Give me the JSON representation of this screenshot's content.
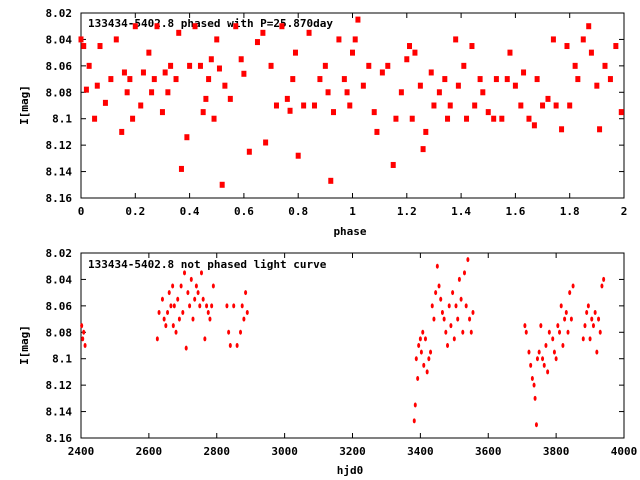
{
  "chart_data": [
    {
      "type": "scatter",
      "title": "133434-5402.8 phased with P=25.870day",
      "xlabel": "phase",
      "ylabel": "I[mag]",
      "xlim": [
        0,
        2
      ],
      "ylim": [
        8.16,
        8.02
      ],
      "y_inverted": true,
      "xticks": [
        "0",
        "0.2",
        "0.4",
        "0.6",
        "0.8",
        "1",
        "1.2",
        "1.4",
        "1.6",
        "1.8",
        "2"
      ],
      "yticks": [
        "8.02",
        "8.04",
        "8.06",
        "8.08",
        "8.1",
        "8.12",
        "8.14",
        "8.16"
      ],
      "marker_color": "#ff0000",
      "series": [
        {
          "x": [
            0.0,
            0.01,
            0.02,
            0.03,
            0.05,
            0.06,
            0.07,
            0.09,
            0.11,
            0.13,
            0.15,
            0.16,
            0.17,
            0.18,
            0.19,
            0.2,
            0.22,
            0.23,
            0.25,
            0.26,
            0.27,
            0.28,
            0.3,
            0.31,
            0.32,
            0.33,
            0.35,
            0.36,
            0.37,
            0.39,
            0.4,
            0.42,
            0.44,
            0.45,
            0.46,
            0.47,
            0.48,
            0.49,
            0.5,
            0.51,
            0.52,
            0.53,
            0.55,
            0.57,
            0.59,
            0.6,
            0.62,
            0.65,
            0.67,
            0.68,
            0.7,
            0.72,
            0.74,
            0.76,
            0.77,
            0.78,
            0.79,
            0.8,
            0.82,
            0.84,
            0.86,
            0.88,
            0.9,
            0.91,
            0.92,
            0.93,
            0.95,
            0.97,
            0.98,
            0.99,
            1.0,
            1.01,
            1.02,
            1.04,
            1.06,
            1.08,
            1.09,
            1.11,
            1.13,
            1.15,
            1.16,
            1.18,
            1.2,
            1.21,
            1.22,
            1.23,
            1.25,
            1.26,
            1.27,
            1.29,
            1.3,
            1.32,
            1.34,
            1.35,
            1.36,
            1.38,
            1.39,
            1.41,
            1.42,
            1.44,
            1.45,
            1.47,
            1.48,
            1.5,
            1.52,
            1.53,
            1.55,
            1.57,
            1.58,
            1.6,
            1.62,
            1.63,
            1.65,
            1.67,
            1.68,
            1.7,
            1.72,
            1.74,
            1.75,
            1.77,
            1.79,
            1.8,
            1.82,
            1.83,
            1.85,
            1.87,
            1.88,
            1.9,
            1.91,
            1.93,
            1.95,
            1.97,
            1.99
          ],
          "y": [
            8.04,
            8.045,
            8.078,
            8.06,
            8.1,
            8.075,
            8.045,
            8.088,
            8.07,
            8.04,
            8.11,
            8.065,
            8.08,
            8.07,
            8.1,
            8.03,
            8.09,
            8.065,
            8.05,
            8.08,
            8.07,
            8.03,
            8.095,
            8.065,
            8.08,
            8.06,
            8.07,
            8.035,
            8.138,
            8.114,
            8.06,
            8.03,
            8.06,
            8.095,
            8.085,
            8.07,
            8.055,
            8.1,
            8.04,
            8.062,
            8.15,
            8.075,
            8.085,
            8.03,
            8.055,
            8.066,
            8.125,
            8.042,
            8.035,
            8.118,
            8.06,
            8.09,
            8.03,
            8.085,
            8.094,
            8.07,
            8.05,
            8.128,
            8.09,
            8.035,
            8.09,
            8.07,
            8.06,
            8.08,
            8.147,
            8.095,
            8.04,
            8.07,
            8.08,
            8.09,
            8.05,
            8.04,
            8.025,
            8.075,
            8.06,
            8.095,
            8.11,
            8.065,
            8.06,
            8.135,
            8.1,
            8.08,
            8.055,
            8.045,
            8.1,
            8.05,
            8.075,
            8.123,
            8.11,
            8.065,
            8.09,
            8.08,
            8.07,
            8.1,
            8.09,
            8.04,
            8.075,
            8.06,
            8.1,
            8.045,
            8.09,
            8.07,
            8.08,
            8.095,
            8.1,
            8.07,
            8.1,
            8.07,
            8.05,
            8.075,
            8.09,
            8.065,
            8.1,
            8.105,
            8.07,
            8.09,
            8.085,
            8.04,
            8.09,
            8.108,
            8.045,
            8.09,
            8.06,
            8.07,
            8.04,
            8.03,
            8.05,
            8.075,
            8.108,
            8.06,
            8.07,
            8.045,
            8.095
          ]
        }
      ]
    },
    {
      "type": "scatter",
      "title": "133434-5402.8 not phased light curve",
      "xlabel": "hjd0",
      "ylabel": "I[mag]",
      "xlim": [
        2400,
        4000
      ],
      "ylim": [
        8.16,
        8.02
      ],
      "y_inverted": true,
      "xticks": [
        "2400",
        "2600",
        "2800",
        "3000",
        "3200",
        "3400",
        "3600",
        "3800",
        "4000"
      ],
      "yticks": [
        "8.02",
        "8.04",
        "8.06",
        "8.08",
        "8.1",
        "8.12",
        "8.14",
        "8.16"
      ],
      "marker_color": "#ff0000",
      "series": [
        {
          "x": [
            2402,
            2405,
            2408,
            2412,
            2625,
            2630,
            2640,
            2645,
            2650,
            2655,
            2660,
            2665,
            2670,
            2672,
            2675,
            2680,
            2685,
            2690,
            2695,
            2700,
            2705,
            2710,
            2715,
            2720,
            2725,
            2730,
            2735,
            2740,
            2745,
            2750,
            2755,
            2760,
            2765,
            2770,
            2775,
            2780,
            2785,
            2790,
            2830,
            2835,
            2840,
            2850,
            2860,
            2870,
            2875,
            2880,
            2885,
            2890,
            3382,
            3385,
            3388,
            3392,
            3395,
            3400,
            3403,
            3407,
            3410,
            3415,
            3420,
            3425,
            3430,
            3435,
            3440,
            3445,
            3450,
            3455,
            3460,
            3465,
            3470,
            3475,
            3480,
            3485,
            3490,
            3495,
            3500,
            3505,
            3510,
            3515,
            3520,
            3525,
            3530,
            3535,
            3540,
            3545,
            3550,
            3555,
            3708,
            3712,
            3720,
            3725,
            3730,
            3735,
            3738,
            3742,
            3745,
            3750,
            3755,
            3760,
            3765,
            3770,
            3775,
            3780,
            3790,
            3795,
            3800,
            3805,
            3810,
            3815,
            3820,
            3825,
            3830,
            3835,
            3840,
            3845,
            3850,
            3880,
            3885,
            3890,
            3895,
            3900,
            3905,
            3910,
            3915,
            3920,
            3925,
            3930,
            3935,
            3940
          ],
          "y": [
            8.075,
            8.085,
            8.08,
            8.09,
            8.085,
            8.065,
            8.055,
            8.07,
            8.075,
            8.065,
            8.05,
            8.06,
            8.045,
            8.075,
            8.06,
            8.08,
            8.055,
            8.07,
            8.045,
            8.065,
            8.035,
            8.092,
            8.05,
            8.06,
            8.04,
            8.07,
            8.055,
            8.045,
            8.05,
            8.06,
            8.035,
            8.055,
            8.085,
            8.06,
            8.065,
            8.07,
            8.06,
            8.045,
            8.06,
            8.08,
            8.09,
            8.06,
            8.09,
            8.08,
            8.06,
            8.07,
            8.05,
            8.065,
            8.147,
            8.135,
            8.1,
            8.115,
            8.09,
            8.085,
            8.095,
            8.08,
            8.105,
            8.085,
            8.11,
            8.1,
            8.095,
            8.06,
            8.07,
            8.05,
            8.03,
            8.045,
            8.055,
            8.065,
            8.07,
            8.08,
            8.09,
            8.06,
            8.075,
            8.05,
            8.085,
            8.06,
            8.07,
            8.04,
            8.055,
            8.08,
            8.035,
            8.06,
            8.025,
            8.07,
            8.08,
            8.065,
            8.075,
            8.08,
            8.095,
            8.105,
            8.115,
            8.12,
            8.13,
            8.15,
            8.1,
            8.095,
            8.075,
            8.1,
            8.105,
            8.09,
            8.11,
            8.08,
            8.085,
            8.095,
            8.1,
            8.075,
            8.08,
            8.06,
            8.09,
            8.07,
            8.065,
            8.08,
            8.05,
            8.07,
            8.045,
            8.085,
            8.075,
            8.065,
            8.06,
            8.085,
            8.07,
            8.075,
            8.065,
            8.095,
            8.07,
            8.08,
            8.045,
            8.04
          ]
        }
      ]
    }
  ]
}
